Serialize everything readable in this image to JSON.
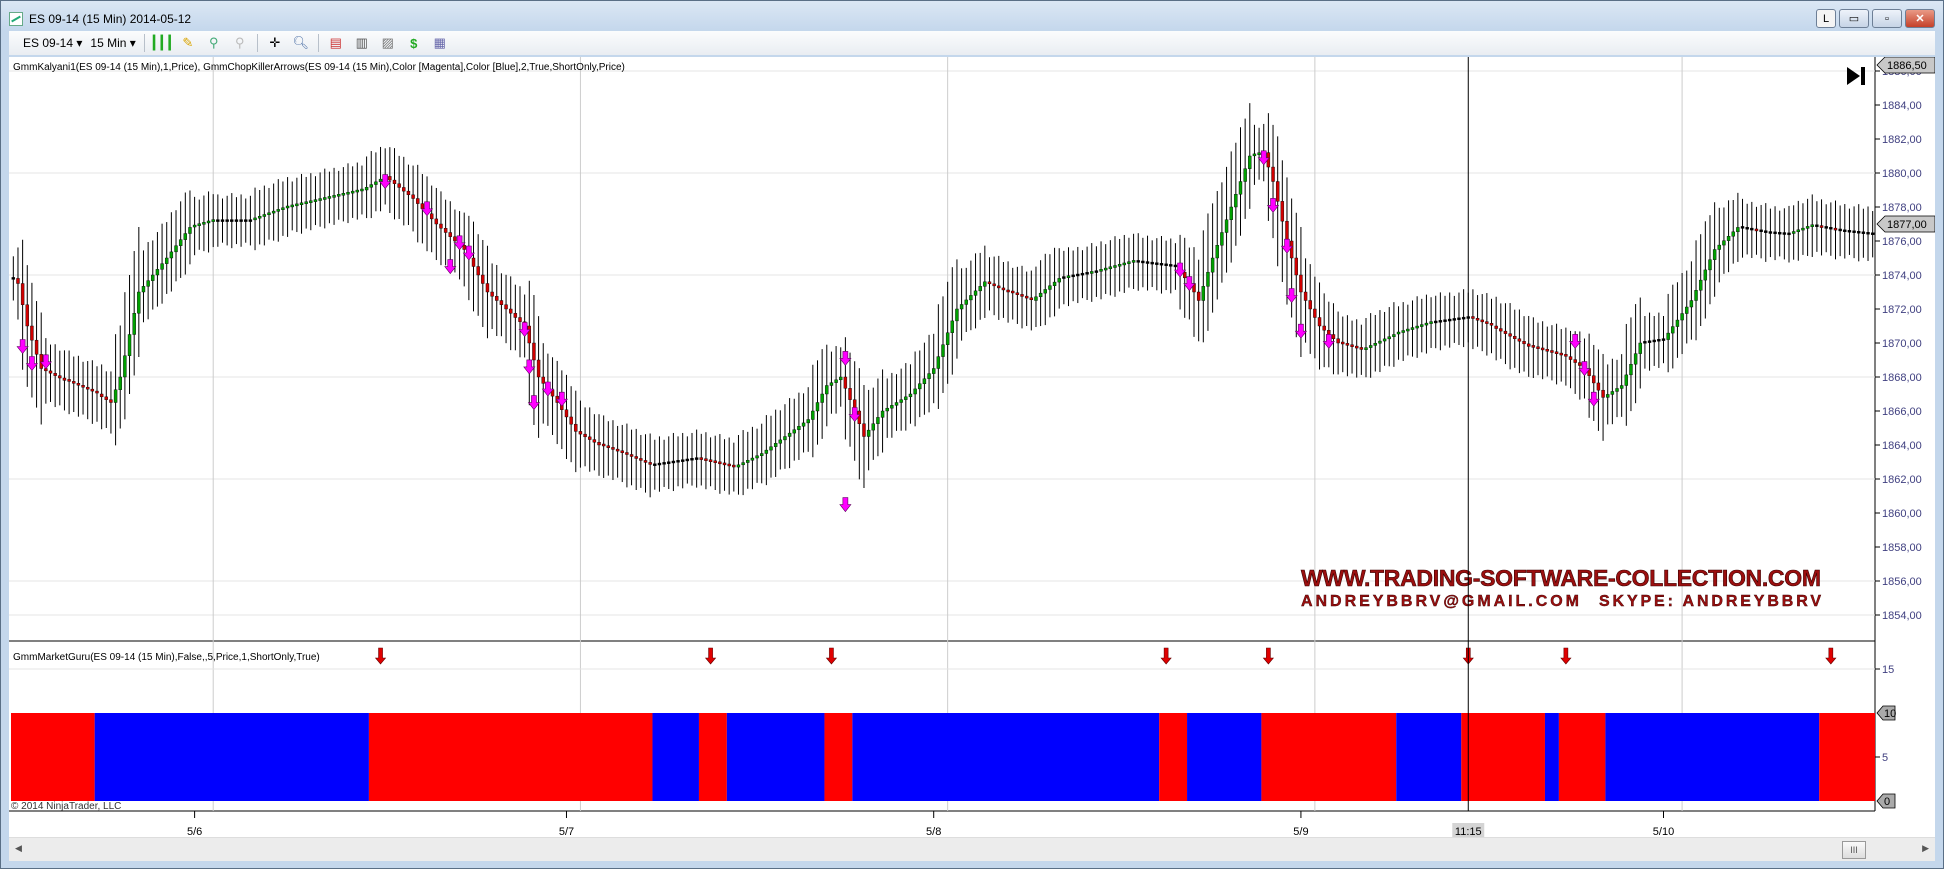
{
  "window": {
    "title": "ES 09-14 (15 Min)  2014-05-12",
    "buttons": {
      "lock": "L",
      "minimize": "▭",
      "restore": "▫",
      "close": "✕"
    }
  },
  "toolbar": {
    "instrument": "ES 09-14",
    "interval": "15 Min",
    "icons": [
      "bar-style-icon",
      "drawing-pencil-icon",
      "zoom-in-icon",
      "zoom-out-icon",
      "crosshair-icon",
      "search-icon",
      "indicators-icon",
      "strategies-icon",
      "chart-properties-icon",
      "dollar-icon",
      "data-box-icon"
    ]
  },
  "price_panel": {
    "label": "GmmKalyani1(ES 09-14 (15 Min),1,Price), GmmChopKillerArrows(ES 09-14 (15 Min),Color [Magenta],Color [Blue],2,True,ShortOnly,Price)",
    "y_ticks": [
      "1886,00",
      "1884,00",
      "1882,00",
      "1880,00",
      "1878,00",
      "1876,00",
      "1874,00",
      "1872,00",
      "1870,00",
      "1868,00",
      "1866,00",
      "1864,00",
      "1862,00",
      "1860,00",
      "1858,00",
      "1856,00",
      "1854,00"
    ],
    "top_marker": "1886,50",
    "last_price": "1877,00",
    "watermark": {
      "line1": "WWW.TRADING-SOFTWARE-COLLECTION.COM",
      "line2a": "ANDREYBBRV@GMAIL.COM",
      "line2b": "SKYPE: ANDREYBBRV"
    },
    "copyright": "© 2014 NinjaTrader, LLC"
  },
  "indicator_panel": {
    "label": "GmmMarketGuru(ES 09-14 (15 Min),False,,5,Price,1,ShortOnly,True)",
    "y_ticks": [
      "15",
      "5"
    ],
    "marker_high": "10",
    "marker_low": "0"
  },
  "time_axis": {
    "labels": [
      "5/6",
      "5/7",
      "5/8",
      "5/9",
      "5/10"
    ],
    "crosshair_label": "11:15"
  },
  "colors": {
    "up": "#00a000",
    "down": "#d00000",
    "arrow": "#ff00ff",
    "block_red": "#ff0000",
    "block_blue": "#0000ff",
    "signal_arrow": "#e00000"
  },
  "chart_data": {
    "type": "candlestick",
    "ylim": [
      1853,
      1887
    ],
    "bars": 401,
    "close_keypoints": [
      [
        0,
        1873.8
      ],
      [
        1,
        1873.5
      ],
      [
        3,
        1871
      ],
      [
        6,
        1868.5
      ],
      [
        11,
        1867.8
      ],
      [
        18,
        1867
      ],
      [
        21,
        1866.5
      ],
      [
        23,
        1868
      ],
      [
        27,
        1873
      ],
      [
        33,
        1875
      ],
      [
        38,
        1876.8
      ],
      [
        43,
        1877.2
      ],
      [
        51,
        1877.2
      ],
      [
        59,
        1878
      ],
      [
        67,
        1878.5
      ],
      [
        75,
        1879
      ],
      [
        80,
        1879.8
      ],
      [
        86,
        1878.5
      ],
      [
        91,
        1877
      ],
      [
        97,
        1875.5
      ],
      [
        102,
        1873
      ],
      [
        110,
        1871
      ],
      [
        113,
        1868
      ],
      [
        117,
        1866.5
      ],
      [
        121,
        1864.8
      ],
      [
        126,
        1864
      ],
      [
        131,
        1863.5
      ],
      [
        137,
        1862.8
      ],
      [
        142,
        1863
      ],
      [
        147,
        1863.2
      ],
      [
        155,
        1862.7
      ],
      [
        161,
        1863.5
      ],
      [
        166,
        1864.5
      ],
      [
        171,
        1865.5
      ],
      [
        175,
        1867.5
      ],
      [
        178,
        1868
      ],
      [
        181,
        1866
      ],
      [
        183,
        1864.5
      ],
      [
        187,
        1866
      ],
      [
        193,
        1867
      ],
      [
        198,
        1868.5
      ],
      [
        203,
        1872
      ],
      [
        209,
        1873.6
      ],
      [
        214,
        1873
      ],
      [
        219,
        1872.5
      ],
      [
        225,
        1873.8
      ],
      [
        233,
        1874.2
      ],
      [
        241,
        1874.8
      ],
      [
        250,
        1874.5
      ],
      [
        253,
        1873.5
      ],
      [
        255,
        1872.5
      ],
      [
        258,
        1875
      ],
      [
        262,
        1878
      ],
      [
        266,
        1881
      ],
      [
        269,
        1881.2
      ],
      [
        271,
        1879.5
      ],
      [
        274,
        1876
      ],
      [
        277,
        1873
      ],
      [
        281,
        1871
      ],
      [
        285,
        1870
      ],
      [
        290,
        1869.6
      ],
      [
        297,
        1870.5
      ],
      [
        305,
        1871.2
      ],
      [
        313,
        1871.5
      ],
      [
        318,
        1871
      ],
      [
        326,
        1869.8
      ],
      [
        334,
        1869.2
      ],
      [
        338,
        1868.5
      ],
      [
        342,
        1866.8
      ],
      [
        346,
        1867.5
      ],
      [
        350,
        1870
      ],
      [
        355,
        1870.2
      ],
      [
        361,
        1872.5
      ],
      [
        366,
        1875.5
      ],
      [
        371,
        1876.8
      ],
      [
        377,
        1876.5
      ],
      [
        382,
        1876.4
      ],
      [
        387,
        1876.9
      ],
      [
        393,
        1876.6
      ],
      [
        400,
        1876.4
      ]
    ],
    "short_arrows": [
      [
        2,
        1869.5
      ],
      [
        4,
        1868.5
      ],
      [
        7,
        1868.6
      ],
      [
        80,
        1879.2
      ],
      [
        89,
        1877.6
      ],
      [
        94,
        1874.2
      ],
      [
        96,
        1875.6
      ],
      [
        98,
        1875
      ],
      [
        110,
        1870.5
      ],
      [
        111,
        1868.3
      ],
      [
        112,
        1866.2
      ],
      [
        115,
        1867
      ],
      [
        118,
        1866.4
      ],
      [
        179,
        1868.8
      ],
      [
        179,
        1860.2
      ],
      [
        181,
        1865.5
      ],
      [
        251,
        1874
      ],
      [
        253,
        1873.2
      ],
      [
        269,
        1880.6
      ],
      [
        271,
        1877.8
      ],
      [
        274,
        1875.4
      ],
      [
        275,
        1872.5
      ],
      [
        277,
        1870.4
      ],
      [
        283,
        1869.8
      ],
      [
        336,
        1869.8
      ],
      [
        338,
        1868.2
      ],
      [
        340,
        1866.4
      ]
    ],
    "market_guru_blocks": [
      [
        "red",
        0,
        18
      ],
      [
        "blue",
        18,
        77
      ],
      [
        "red",
        77,
        138
      ],
      [
        "blue",
        138,
        148
      ],
      [
        "red",
        148,
        154
      ],
      [
        "blue",
        154,
        175
      ],
      [
        "red",
        175,
        181
      ],
      [
        "blue",
        181,
        247
      ],
      [
        "red",
        247,
        253
      ],
      [
        "blue",
        253,
        269
      ],
      [
        "red",
        269,
        298
      ],
      [
        "blue",
        298,
        312
      ],
      [
        "red",
        312,
        330
      ],
      [
        "blue",
        330,
        333
      ],
      [
        "red",
        333,
        343
      ],
      [
        "blue",
        343,
        389
      ],
      [
        "red",
        389,
        401
      ]
    ],
    "market_guru_value": 10,
    "signal_arrow_bars": [
      79,
      150,
      176,
      248,
      270,
      313,
      334,
      391
    ],
    "day_separator_bars": [
      43,
      122,
      201,
      280,
      359
    ],
    "date_label_bars": [
      39,
      119,
      198,
      277,
      355
    ],
    "crosshair_bar": 313
  }
}
